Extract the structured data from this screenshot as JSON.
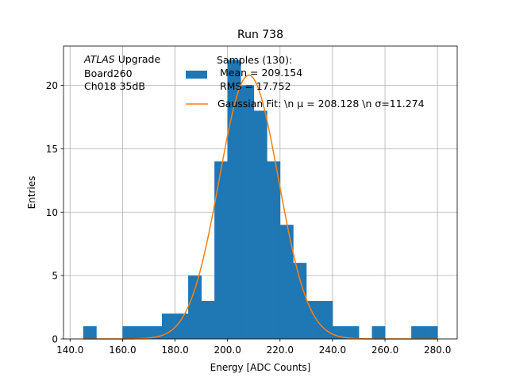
{
  "colors": {
    "bar": "#1f77b4",
    "fit": "#ff7f0e",
    "grid": "#b0b0b0",
    "axis": "#000000"
  },
  "chart_data": {
    "type": "bar",
    "title": "Run 738",
    "xlabel": "Energy [ADC Counts]",
    "ylabel": "Entries",
    "xlim": [
      137.5,
      287.5
    ],
    "ylim": [
      0,
      23.1
    ],
    "grid": true,
    "x_ticks": [
      140,
      160,
      180,
      200,
      220,
      240,
      260,
      280
    ],
    "x_tick_labels": [
      "140.0",
      "160.0",
      "180.0",
      "200.0",
      "220.0",
      "240.0",
      "260.0",
      "280.0"
    ],
    "y_ticks": [
      0,
      5,
      10,
      15,
      20
    ],
    "y_tick_labels": [
      "0",
      "5",
      "10",
      "15",
      "20"
    ],
    "bin_width": 5,
    "bin_starts": [
      145,
      150,
      155,
      160,
      165,
      170,
      175,
      180,
      185,
      190,
      195,
      200,
      205,
      210,
      215,
      220,
      225,
      230,
      235,
      240,
      245,
      250,
      255,
      260,
      265,
      270,
      275
    ],
    "counts": [
      1,
      0,
      0,
      1,
      1,
      1,
      2,
      2,
      5,
      3,
      14,
      22,
      20,
      18,
      14,
      9,
      6,
      3,
      3,
      1,
      1,
      0,
      1,
      0,
      0,
      1,
      1
    ],
    "fit": {
      "mu": 208.128,
      "sigma": 11.274,
      "amplitude": 20.8,
      "x_range": [
        145,
        280
      ]
    },
    "legend": {
      "position": "top-right",
      "hist_label": [
        "Samples (130):",
        " Mean = 209.154",
        " RMS = 17.752"
      ],
      "fit_label": "Gaussian Fit: \\n μ = 208.128 \\n σ=11.274"
    },
    "annotation": {
      "position": "top-left",
      "atlas": "ATLAS",
      "upgrade": " Upgrade",
      "lines": [
        " Board260",
        " Ch018 35dB"
      ]
    }
  }
}
